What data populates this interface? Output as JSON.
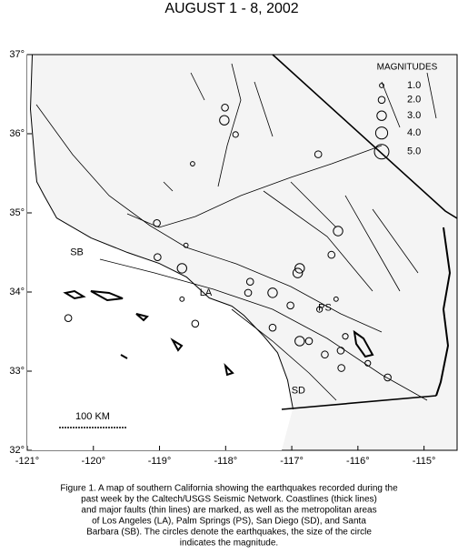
{
  "chart_data": {
    "type": "map",
    "title": "AUGUST 1 - 8, 2002",
    "xlim": [
      -121,
      -114.5
    ],
    "ylim": [
      32,
      37
    ],
    "xticks": [
      {
        "value": -121,
        "label": "-121°"
      },
      {
        "value": -120,
        "label": "-120°"
      },
      {
        "value": -119,
        "label": "-119°"
      },
      {
        "value": -118,
        "label": "-118°"
      },
      {
        "value": -117,
        "label": "-117°"
      },
      {
        "value": -116,
        "label": "-116°"
      },
      {
        "value": -115,
        "label": "-115°"
      }
    ],
    "yticks": [
      {
        "value": 32,
        "label": "32°"
      },
      {
        "value": 33,
        "label": "33°"
      },
      {
        "value": 34,
        "label": "34°"
      },
      {
        "value": 35,
        "label": "35°"
      },
      {
        "value": 36,
        "label": "36°"
      },
      {
        "value": 37,
        "label": "37°"
      }
    ],
    "legend_title": "MAGNITUDES",
    "legend": [
      {
        "value": 1,
        "label": "1.0"
      },
      {
        "value": 2,
        "label": "2.0"
      },
      {
        "value": 3,
        "label": "3.0"
      },
      {
        "value": 4,
        "label": "4.0"
      },
      {
        "value": 5,
        "label": "5.0"
      }
    ],
    "color": "#000000",
    "lon": [
      -118.02,
      -118.01,
      -117.85,
      -118.5,
      -116.6,
      -119.04,
      -119.03,
      -118.66,
      -118.6,
      -117.63,
      -117.66,
      -117.29,
      -116.91,
      -116.88,
      -116.3,
      -116.4,
      -116.74,
      -116.88,
      -116.5,
      -117.29,
      -118.46,
      -120.38,
      -116.25,
      -115.55,
      -116.58,
      -118.66,
      -116.19,
      -116.26,
      -115.85,
      -117.02,
      -116.33
    ],
    "lat": [
      36.17,
      36.33,
      35.99,
      35.62,
      35.74,
      34.87,
      34.44,
      34.3,
      34.59,
      34.13,
      33.99,
      33.99,
      34.24,
      34.3,
      34.77,
      34.47,
      33.38,
      33.38,
      33.21,
      33.55,
      33.6,
      33.67,
      33.04,
      32.92,
      33.78,
      33.91,
      33.44,
      33.26,
      33.1,
      33.83,
      33.91
    ],
    "mag": [
      3,
      2,
      1.5,
      1,
      2,
      2,
      2,
      3,
      1,
      2,
      2,
      3,
      3,
      3,
      3,
      2,
      2,
      3,
      2,
      2,
      2,
      2,
      2,
      2,
      1.5,
      1,
      1.5,
      2,
      1.5,
      2,
      1
    ],
    "places": [
      {
        "label": "SB",
        "lon": -120.25,
        "lat": 34.5
      },
      {
        "label": "LA",
        "lon": -118.3,
        "lat": 33.99
      },
      {
        "label": "PS",
        "lon": -116.5,
        "lat": 33.8
      },
      {
        "label": "SD",
        "lon": -116.9,
        "lat": 32.75
      }
    ],
    "scale_bar": "100 KM",
    "caption": [
      "Figure 1. A map of southern California showing the earthquakes recorded during the",
      "past week by the Caltech/USGS Seismic Network.  Coastlines (thick lines)",
      "and major faults (thin lines) are marked, as well as the metropolitan areas",
      "of Los Angeles (LA), Palm Springs (PS), San Diego (SD), and Santa",
      "Barbara (SB).  The circles denote the earthquakes, the size of the circle",
      "indicates the magnitude."
    ]
  }
}
